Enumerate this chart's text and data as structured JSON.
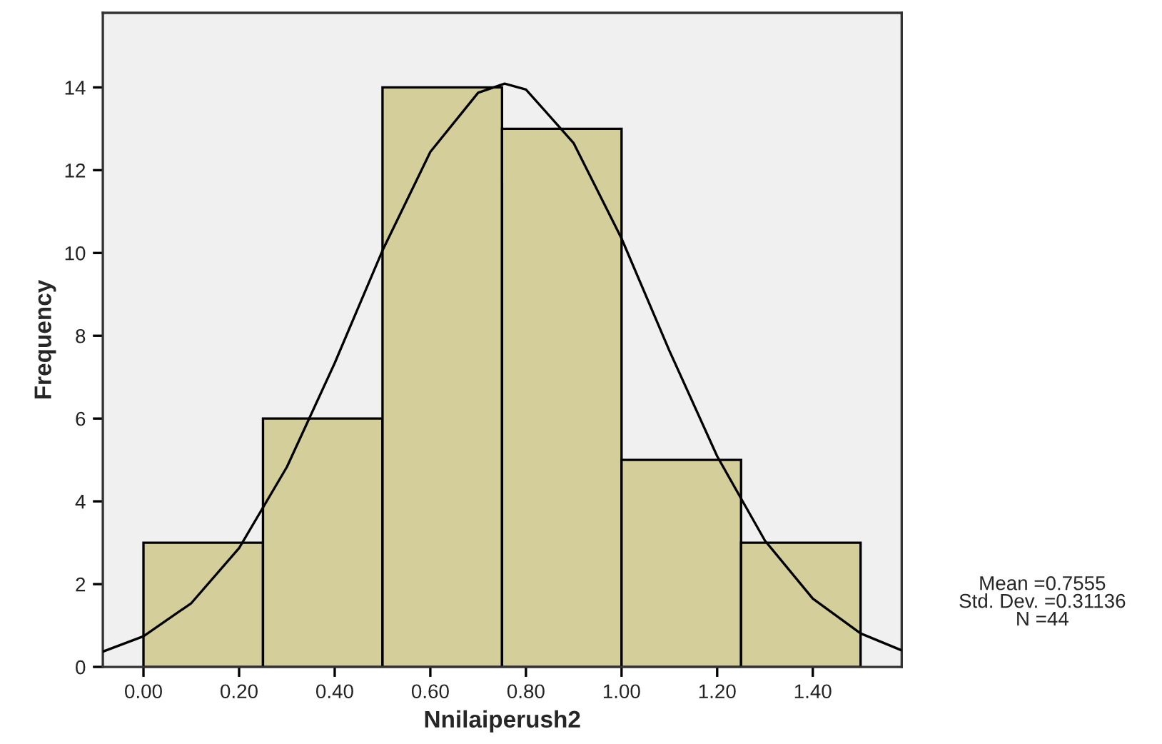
{
  "chart_data": {
    "type": "histogram",
    "xlabel": "Nnilaiperush2",
    "ylabel": "Frequency",
    "bins": [
      0,
      0.25,
      0.5,
      0.75,
      1.0,
      1.25,
      1.5
    ],
    "values": [
      3,
      6,
      14,
      13,
      5,
      3
    ],
    "color": "#d3ce9a",
    "series": [
      {
        "type": "line",
        "color": "#000000",
        "x": [
          -0.085,
          0.0,
          0.1,
          0.2,
          0.3,
          0.4,
          0.5,
          0.6,
          0.7,
          0.7555,
          0.8,
          0.9,
          1.0,
          1.1,
          1.2,
          1.3,
          1.4,
          1.5,
          1.586
        ],
        "values": [
          0.37,
          0.74,
          1.54,
          2.87,
          4.83,
          7.34,
          10.06,
          12.44,
          13.87,
          14.09,
          13.95,
          12.65,
          10.35,
          7.64,
          5.09,
          3.05,
          1.65,
          0.81,
          0.4
        ]
      }
    ],
    "xlim": [
      -0.085,
      1.586
    ],
    "ylim": [
      0,
      15.8
    ],
    "xticks": [
      {
        "value": 0,
        "label": "0.00"
      },
      {
        "value": 0.2,
        "label": "0.20"
      },
      {
        "value": 0.4,
        "label": "0.40"
      },
      {
        "value": 0.6,
        "label": "0.60"
      },
      {
        "value": 0.8,
        "label": "0.80"
      },
      {
        "value": 1.0,
        "label": "1.00"
      },
      {
        "value": 1.2,
        "label": "1.20"
      },
      {
        "value": 1.4,
        "label": "1.40"
      }
    ],
    "yticks": [
      0,
      2,
      4,
      6,
      8,
      10,
      12,
      14
    ],
    "annotations": [
      "Mean =0.7555\nStd. Dev. =0.31136\nN =44"
    ],
    "grid": false
  }
}
